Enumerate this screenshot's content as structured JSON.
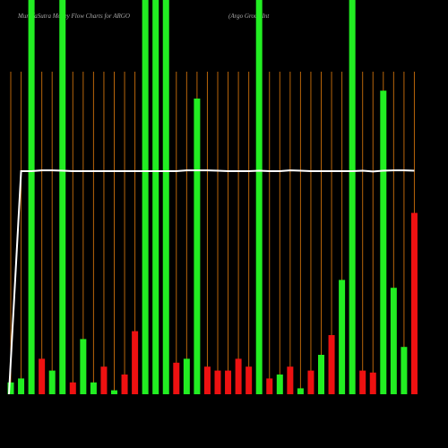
{
  "chart_data": {
    "type": "bar",
    "title": "MunafaSutra  Money Flow  Charts for ARGO",
    "subtitle": "(Argo  Group Int",
    "ylim": [
      0,
      100
    ],
    "grid": true,
    "grid_color": "#b8650a",
    "values": [
      3,
      4,
      100,
      9,
      6,
      100,
      3,
      14,
      3,
      7,
      1,
      5,
      16,
      100,
      100,
      100,
      8,
      9,
      75,
      7,
      6,
      6,
      9,
      7,
      100,
      4,
      5,
      7,
      1.5,
      6,
      10,
      15,
      29,
      100,
      6,
      5.5,
      77,
      27,
      12,
      46
    ],
    "colors": [
      "#22ee22",
      "#22ee22",
      "#22ee22",
      "#ee1111",
      "#22ee22",
      "#22ee22",
      "#ee1111",
      "#22ee22",
      "#22ee22",
      "#ee1111",
      "#22ee22",
      "#ee1111",
      "#ee1111",
      "#22ee22",
      "#22ee22",
      "#22ee22",
      "#ee1111",
      "#22ee22",
      "#22ee22",
      "#ee1111",
      "#ee1111",
      "#ee1111",
      "#ee1111",
      "#ee1111",
      "#22ee22",
      "#ee1111",
      "#22ee22",
      "#ee1111",
      "#22ee22",
      "#ee1111",
      "#22ee22",
      "#ee1111",
      "#22ee22",
      "#22ee22",
      "#ee1111",
      "#ee1111",
      "#22ee22",
      "#22ee22",
      "#22ee22",
      "#ee1111"
    ],
    "line": {
      "color": "#ffffff",
      "values": [
        0,
        56.6,
        56.6,
        56.8,
        56.8,
        56.7,
        56.6,
        56.6,
        56.6,
        56.6,
        56.6,
        56.6,
        56.6,
        56.6,
        56.6,
        56.6,
        56.6,
        56.8,
        56.8,
        56.8,
        56.7,
        56.6,
        56.6,
        56.6,
        56.7,
        56.6,
        56.6,
        56.8,
        56.7,
        56.6,
        56.6,
        56.6,
        56.6,
        56.6,
        56.7,
        56.5,
        56.7,
        56.8,
        56.8,
        56.7
      ]
    }
  }
}
